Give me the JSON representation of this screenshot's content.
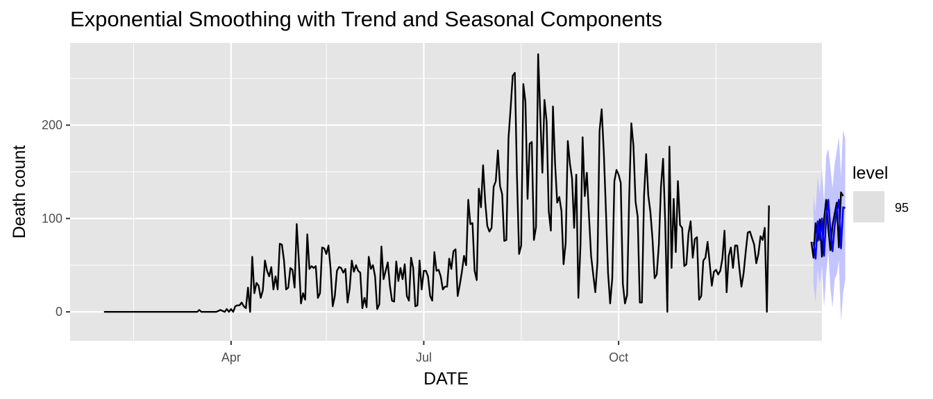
{
  "chart_data": {
    "type": "line",
    "title": "Exponential Smoothing with Trend and Seasonal Components",
    "xlabel": "DATE",
    "ylabel": "Death count",
    "x_ticks": [
      {
        "label": "Apr",
        "day": 60
      },
      {
        "label": "Jul",
        "day": 151
      },
      {
        "label": "Oct",
        "day": 243
      }
    ],
    "x_minor_days": [
      14,
      105,
      197,
      289
    ],
    "y_ticks": [
      0,
      100,
      200
    ],
    "y_minor": [
      50,
      150,
      250
    ],
    "xlim_days": [
      -16,
      339
    ],
    "ylim": [
      -31,
      288
    ],
    "grid": true,
    "colors": {
      "panel": "#e5e5e5",
      "grid": "#ffffff",
      "observed": "#000000",
      "forecast": "#0000ff",
      "interval": "#c4c4ff",
      "legend_key": "#e0e0e0"
    },
    "legend": {
      "title": "level",
      "items": [
        "95"
      ],
      "position": "right"
    },
    "series": [
      {
        "x_start_day": 0,
        "values": [
          0,
          0,
          0,
          0,
          0,
          0,
          0,
          0,
          0,
          0,
          0,
          0,
          0,
          0,
          0,
          0,
          0,
          0,
          0,
          0,
          0,
          0,
          0,
          0,
          0,
          0,
          0,
          0,
          0,
          0,
          0,
          0,
          0,
          0,
          0,
          0,
          0,
          0,
          0,
          0,
          0,
          0,
          0,
          0,
          0,
          2,
          0,
          0,
          0,
          0,
          0,
          0,
          0,
          0,
          1,
          2,
          1,
          0,
          3,
          0,
          3,
          0,
          6,
          7,
          7,
          10,
          6,
          4,
          26,
          0,
          59,
          20,
          31,
          28,
          15,
          23,
          55,
          44,
          38,
          48,
          24,
          38,
          24,
          73,
          72,
          55,
          24,
          26,
          47,
          45,
          26,
          94,
          55,
          9,
          20,
          13,
          83,
          46,
          49,
          47,
          49,
          15,
          20,
          69,
          68,
          62,
          71,
          46,
          6,
          17,
          44,
          48,
          47,
          42,
          46,
          10,
          25,
          55,
          43,
          50,
          44,
          42,
          4,
          15,
          5,
          59,
          46,
          50,
          38,
          3,
          8,
          70,
          35,
          44,
          53,
          28,
          12,
          11,
          54,
          33,
          47,
          35,
          51,
          17,
          12,
          58,
          47,
          6,
          7,
          55,
          24,
          44,
          44,
          38,
          17,
          12,
          64,
          44,
          45,
          38,
          24,
          27,
          27,
          57,
          46,
          65,
          67,
          17,
          29,
          43,
          60,
          50,
          120,
          94,
          95,
          44,
          34,
          132,
          112,
          157,
          118,
          92,
          86,
          90,
          134,
          140,
          173,
          135,
          126,
          76,
          77,
          186,
          218,
          253,
          256,
          145,
          62,
          71,
          244,
          225,
          121,
          180,
          182,
          77,
          91,
          276,
          211,
          149,
          227,
          204,
          108,
          87,
          220,
          159,
          117,
          123,
          108,
          51,
          74,
          183,
          159,
          143,
          90,
          147,
          15,
          72,
          187,
          124,
          149,
          103,
          60,
          40,
          21,
          53,
          194,
          217,
          171,
          109,
          42,
          9,
          36,
          140,
          152,
          147,
          138,
          30,
          9,
          18,
          124,
          202,
          178,
          118,
          102,
          10,
          10,
          124,
          169,
          125,
          107,
          78,
          36,
          40,
          72,
          134,
          164,
          96,
          0,
          177,
          47,
          121,
          64,
          140,
          93,
          90,
          49,
          51,
          84,
          97,
          58,
          78,
          80,
          13,
          17,
          55,
          58,
          75,
          52,
          28,
          43,
          45,
          40,
          44,
          57,
          87,
          21,
          60,
          69,
          47,
          71,
          71,
          47,
          27,
          41,
          64,
          85,
          86,
          79,
          72,
          52,
          62,
          81,
          77,
          90,
          0,
          114
        ]
      },
      {
        "x_start_day": 334,
        "values": [
          75,
          58,
          95,
          76,
          99,
          59,
          99,
          120,
          89,
          66,
          93,
          105,
          117,
          69,
          128,
          124
        ]
      }
    ],
    "forecast": {
      "x_start_day": 335,
      "values": [
        75,
        57,
        97,
        77,
        100,
        60,
        100,
        120,
        88,
        65,
        92,
        108,
        120,
        68,
        112,
        111
      ],
      "lower": [
        30,
        10,
        45,
        30,
        50,
        5,
        40,
        65,
        25,
        5,
        35,
        40,
        55,
        -10,
        20,
        35
      ],
      "upper": [
        124,
        108,
        145,
        126,
        153,
        116,
        167,
        175,
        155,
        132,
        158,
        172,
        187,
        145,
        195,
        185
      ]
    }
  }
}
